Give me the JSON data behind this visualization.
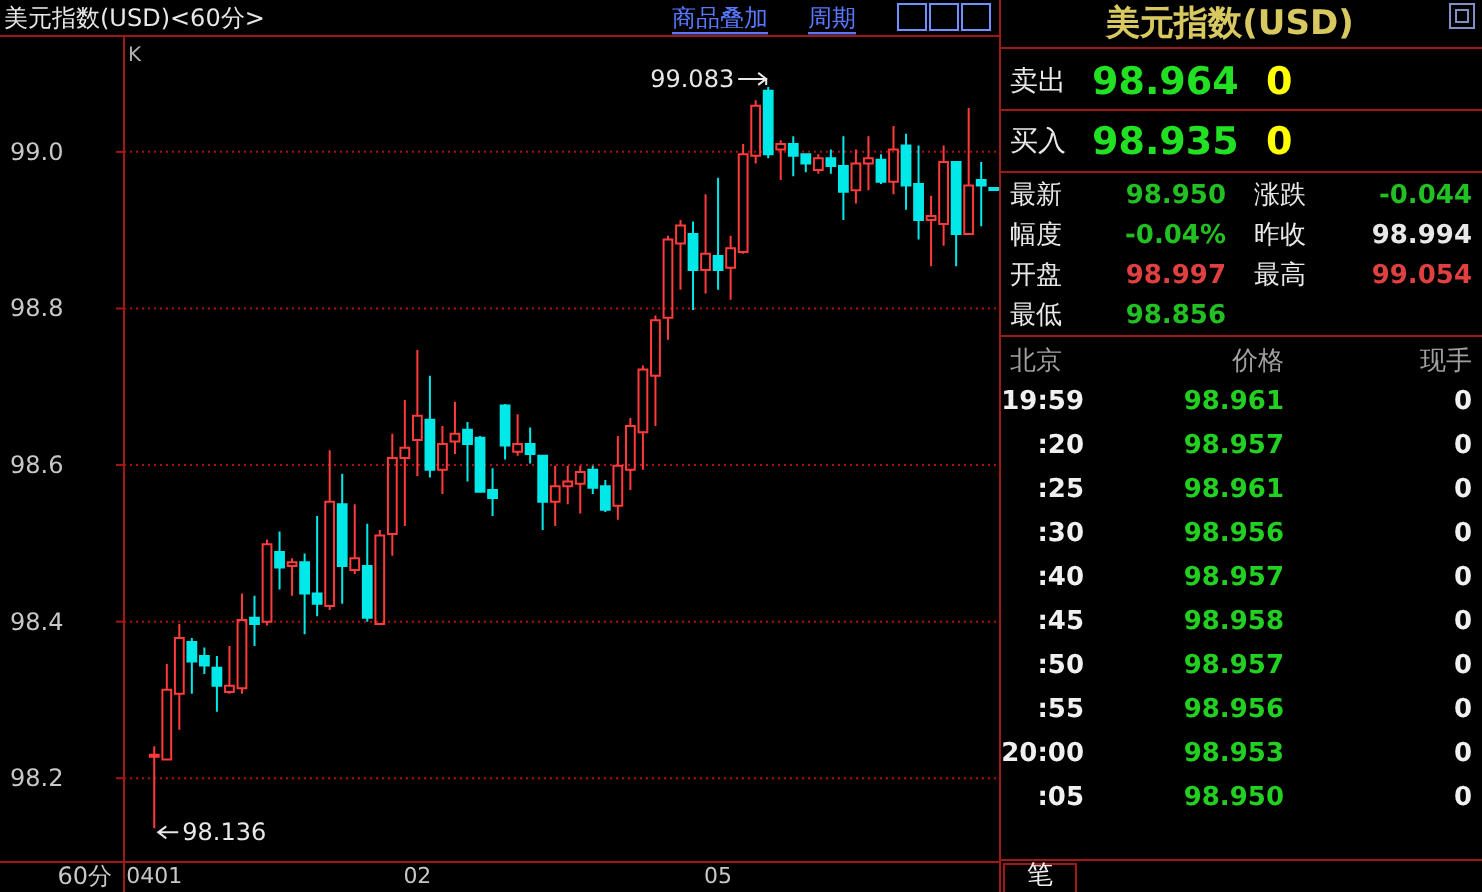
{
  "chart_data": [
    {
      "type": "candlestick",
      "title": "美元指数(USD)<60分>",
      "categories": [
        "0401",
        null,
        null,
        null,
        null,
        null,
        null,
        null,
        null,
        null,
        null,
        null,
        null,
        null,
        null,
        null,
        null,
        null,
        null,
        null,
        null,
        "02",
        null,
        null,
        null,
        null,
        null,
        null,
        null,
        null,
        null,
        null,
        null,
        null,
        null,
        null,
        null,
        null,
        null,
        null,
        null,
        null,
        null,
        null,
        null,
        "05",
        null,
        null,
        null,
        null,
        null,
        null,
        null,
        null,
        null,
        null,
        null,
        null,
        null,
        null,
        null,
        null,
        null,
        null,
        null,
        null,
        null,
        null
      ],
      "ohlc": [
        [
          98.228,
          98.241,
          98.136,
          98.23
        ],
        [
          98.224,
          98.346,
          98.224,
          98.313
        ],
        [
          98.308,
          98.397,
          98.262,
          98.379
        ],
        [
          98.374,
          98.379,
          98.308,
          98.349
        ],
        [
          98.356,
          98.367,
          98.333,
          98.344
        ],
        [
          98.341,
          98.356,
          98.285,
          98.318
        ],
        [
          98.31,
          98.369,
          98.308,
          98.318
        ],
        [
          98.315,
          98.436,
          98.308,
          98.402
        ],
        [
          98.405,
          98.433,
          98.369,
          98.397
        ],
        [
          98.4,
          98.505,
          98.395,
          98.499
        ],
        [
          98.489,
          98.515,
          98.441,
          98.469
        ],
        [
          98.471,
          98.481,
          98.433,
          98.476
        ],
        [
          98.476,
          98.487,
          98.384,
          98.436
        ],
        [
          98.436,
          98.535,
          98.407,
          98.423
        ],
        [
          98.42,
          98.619,
          98.415,
          98.553
        ],
        [
          98.55,
          98.589,
          98.423,
          98.471
        ],
        [
          98.466,
          98.55,
          98.461,
          98.481
        ],
        [
          98.471,
          98.525,
          98.4,
          98.405
        ],
        [
          98.397,
          98.517,
          98.397,
          98.51
        ],
        [
          98.512,
          98.64,
          98.484,
          98.609
        ],
        [
          98.609,
          98.683,
          98.522,
          98.622
        ],
        [
          98.632,
          98.747,
          98.586,
          98.663
        ],
        [
          98.658,
          98.714,
          98.584,
          98.594
        ],
        [
          98.594,
          98.65,
          98.563,
          98.627
        ],
        [
          98.63,
          98.681,
          98.614,
          98.64
        ],
        [
          98.645,
          98.655,
          98.579,
          98.627
        ],
        [
          98.635,
          98.637,
          98.566,
          98.566
        ],
        [
          98.568,
          98.596,
          98.535,
          98.558
        ],
        [
          98.676,
          98.678,
          98.607,
          98.625
        ],
        [
          98.617,
          98.665,
          98.612,
          98.627
        ],
        [
          98.627,
          98.648,
          98.602,
          98.614
        ],
        [
          98.612,
          98.612,
          98.517,
          98.553
        ],
        [
          98.553,
          98.599,
          98.522,
          98.573
        ],
        [
          98.573,
          98.599,
          98.55,
          98.579
        ],
        [
          98.576,
          98.599,
          98.538,
          98.591
        ],
        [
          98.594,
          98.599,
          98.563,
          98.571
        ],
        [
          98.573,
          98.581,
          98.54,
          98.543
        ],
        [
          98.548,
          98.637,
          98.53,
          98.599
        ],
        [
          98.594,
          98.66,
          98.568,
          98.65
        ],
        [
          98.642,
          98.727,
          98.594,
          98.722
        ],
        [
          98.714,
          98.791,
          98.65,
          98.785
        ],
        [
          98.788,
          98.893,
          98.76,
          98.888
        ],
        [
          98.883,
          98.913,
          98.824,
          98.906
        ],
        [
          98.895,
          98.911,
          98.798,
          98.849
        ],
        [
          98.849,
          98.946,
          98.819,
          98.87
        ],
        [
          98.867,
          98.967,
          98.824,
          98.849
        ],
        [
          98.852,
          98.893,
          98.811,
          98.877
        ],
        [
          98.872,
          99.01,
          98.87,
          98.997
        ],
        [
          98.995,
          99.066,
          98.985,
          99.059
        ],
        [
          99.078,
          99.083,
          98.992,
          98.997
        ],
        [
          99.003,
          99.015,
          98.964,
          99.01
        ],
        [
          99.01,
          99.02,
          98.969,
          98.995
        ],
        [
          98.997,
          98.997,
          98.974,
          98.985
        ],
        [
          98.977,
          98.997,
          98.972,
          98.992
        ],
        [
          98.992,
          99.003,
          98.972,
          98.982
        ],
        [
          98.982,
          99.02,
          98.913,
          98.949
        ],
        [
          98.951,
          99.003,
          98.934,
          98.985
        ],
        [
          98.985,
          99.02,
          98.951,
          98.992
        ],
        [
          98.99,
          98.997,
          98.959,
          98.962
        ],
        [
          98.962,
          99.033,
          98.946,
          99.003
        ],
        [
          99.008,
          99.023,
          98.926,
          98.957
        ],
        [
          98.959,
          99.008,
          98.888,
          98.913
        ],
        [
          98.913,
          98.944,
          98.854,
          98.918
        ],
        [
          98.908,
          99.008,
          98.88,
          98.987
        ],
        [
          98.987,
          98.987,
          98.854,
          98.895
        ],
        [
          98.895,
          99.056,
          98.895,
          98.957
        ],
        [
          98.964,
          98.987,
          98.905,
          98.957
        ],
        [
          98.954,
          98.954,
          98.954,
          98.954
        ]
      ],
      "colors": [
        "#ff3b3b",
        "#ff3b3b",
        "#ff3b3b",
        "#00e8e8",
        "#00e8e8",
        "#00e8e8",
        "#ff3b3b",
        "#ff3b3b",
        "#00e8e8",
        "#ff3b3b",
        "#00e8e8",
        "#ff3b3b",
        "#00e8e8",
        "#00e8e8",
        "#ff3b3b",
        "#00e8e8",
        "#ff3b3b",
        "#00e8e8",
        "#ff3b3b",
        "#ff3b3b",
        "#ff3b3b",
        "#ff3b3b",
        "#00e8e8",
        "#ff3b3b",
        "#ff3b3b",
        "#00e8e8",
        "#00e8e8",
        "#00e8e8",
        "#00e8e8",
        "#ff3b3b",
        "#00e8e8",
        "#00e8e8",
        "#ff3b3b",
        "#ff3b3b",
        "#ff3b3b",
        "#00e8e8",
        "#00e8e8",
        "#ff3b3b",
        "#ff3b3b",
        "#ff3b3b",
        "#ff3b3b",
        "#ff3b3b",
        "#ff3b3b",
        "#00e8e8",
        "#ff3b3b",
        "#00e8e8",
        "#ff3b3b",
        "#ff3b3b",
        "#ff3b3b",
        "#00e8e8",
        "#ff3b3b",
        "#00e8e8",
        "#00e8e8",
        "#ff3b3b",
        "#00e8e8",
        "#00e8e8",
        "#ff3b3b",
        "#ff3b3b",
        "#00e8e8",
        "#ff3b3b",
        "#00e8e8",
        "#00e8e8",
        "#ff3b3b",
        "#ff3b3b",
        "#00e8e8",
        "#ff3b3b",
        "#00e8e8",
        "#00e8e8"
      ],
      "ylim": [
        98.093,
        99.148
      ],
      "yticks": [
        {
          "value": 98.2,
          "label": "98.2"
        },
        {
          "value": 98.4,
          "label": "98.4"
        },
        {
          "value": 98.6,
          "label": "98.6"
        },
        {
          "value": 98.8,
          "label": "98.8"
        },
        {
          "value": 99.0,
          "label": "99.0"
        }
      ],
      "grid": "y",
      "annotations": [
        "商品叠加",
        "周期",
        "K",
        "60分",
        "99.083",
        "98.136"
      ]
    },
    {
      "type": "other",
      "title": "美元指数(USD)",
      "annotations": [
        "卖出",
        "98.964",
        "0",
        "买入",
        "98.935",
        "0",
        "最新",
        "98.950",
        "涨跌",
        "-0.044",
        "幅度",
        "-0.04%",
        "昨收",
        "98.994",
        "开盘",
        "98.997",
        "最高",
        "99.054",
        "最低",
        "98.856",
        "北京",
        "价格",
        "现手",
        "19:59",
        "98.961",
        "0",
        ":20",
        "98.957",
        "0",
        ":25",
        "98.961",
        "0",
        ":30",
        "98.956",
        "0",
        ":40",
        "98.957",
        "0",
        ":45",
        "98.958",
        "0",
        ":50",
        "98.957",
        "0",
        ":55",
        "98.956",
        "0",
        "20:00",
        "98.953",
        "0",
        ":05",
        "98.950",
        "0",
        "笔"
      ],
      "colors": [
        "#e8e8e8",
        "#22e022",
        "#ffff00",
        "#e8e8e8",
        "#22e022",
        "#ffff00",
        "#e8e8e8",
        "#22c022",
        "#e8e8e8",
        "#22c022",
        "#e8e8e8",
        "#22c022",
        "#e8e8e8",
        "#e8e8e8",
        "#e8e8e8",
        "#e04040",
        "#e8e8e8",
        "#e04040",
        "#e8e8e8",
        "#22c022",
        "#a0a0a0",
        "#a0a0a0",
        "#a0a0a0",
        "#f0f0f0",
        "#22d022",
        "#f0f0f0",
        "#f0f0f0",
        "#22d022",
        "#f0f0f0",
        "#f0f0f0",
        "#22d022",
        "#f0f0f0",
        "#f0f0f0",
        "#22d022",
        "#f0f0f0",
        "#f0f0f0",
        "#22d022",
        "#f0f0f0",
        "#f0f0f0",
        "#22d022",
        "#f0f0f0",
        "#f0f0f0",
        "#22d022",
        "#f0f0f0",
        "#f0f0f0",
        "#22d022",
        "#f0f0f0",
        "#f0f0f0",
        "#22d022",
        "#f0f0f0",
        "#f0f0f0",
        "#22d022",
        "#f0f0f0",
        "#f0f0f0"
      ]
    }
  ]
}
